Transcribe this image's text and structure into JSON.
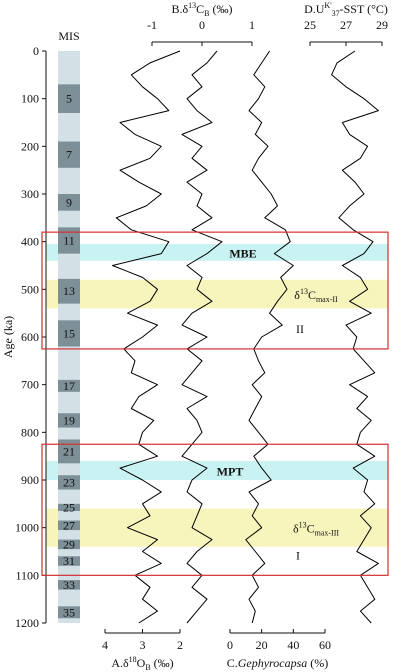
{
  "chart_data": {
    "type": "stacked-proxy",
    "y_title": "Age (ka)",
    "mis_title": "MIS",
    "ylim": [
      0,
      1200
    ],
    "yticks": [
      0,
      100,
      200,
      300,
      400,
      500,
      600,
      700,
      800,
      900,
      1000,
      1100,
      1200
    ],
    "x": [
      0,
      25,
      50,
      75,
      100,
      125,
      150,
      175,
      200,
      225,
      250,
      275,
      300,
      325,
      350,
      375,
      400,
      425,
      450,
      475,
      500,
      525,
      550,
      575,
      600,
      625,
      650,
      675,
      700,
      725,
      750,
      775,
      800,
      825,
      850,
      875,
      900,
      925,
      950,
      975,
      1000,
      1025,
      1050,
      1075,
      1100,
      1125,
      1150,
      1175,
      1200
    ],
    "series": [
      {
        "label": [
          {
            "text": "A.δ",
            "style": "normal"
          },
          {
            "text": "18",
            "style": "sup"
          },
          {
            "text": "O",
            "style": "normal"
          },
          {
            "text": "B",
            "style": "sub"
          },
          {
            "text": " (‰)",
            "style": "normal"
          }
        ],
        "color": "#000000",
        "axis_side": "bottom",
        "xlim": [
          4,
          2
        ],
        "xticks": [
          4,
          3,
          2
        ],
        "values": [
          2.0,
          2.8,
          3.3,
          3.0,
          2.6,
          2.3,
          3.6,
          3.2,
          2.5,
          2.8,
          3.6,
          3.1,
          2.5,
          2.9,
          3.7,
          3.3,
          2.3,
          2.5,
          3.8,
          3.0,
          2.6,
          2.8,
          3.4,
          2.6,
          3.0,
          3.5,
          3.2,
          3.3,
          2.6,
          3.1,
          3.3,
          2.7,
          3.0,
          3.1,
          2.6,
          3.6,
          3.0,
          2.5,
          3.0,
          2.8,
          3.4,
          2.6,
          3.0,
          2.5,
          3.2,
          2.8,
          3.0,
          2.6,
          3.1
        ]
      },
      {
        "label": [
          {
            "text": "B.δ",
            "style": "normal"
          },
          {
            "text": "13",
            "style": "sup"
          },
          {
            "text": "C",
            "style": "normal"
          },
          {
            "text": "B",
            "style": "sub"
          },
          {
            "text": " (‰)",
            "style": "normal"
          }
        ],
        "color": "#000000",
        "axis_side": "top",
        "xlim": [
          -1,
          1
        ],
        "xticks": [
          -1,
          0,
          1
        ],
        "values": [
          0.3,
          0.1,
          -0.2,
          0.0,
          -0.3,
          -0.1,
          0.2,
          -0.4,
          0.0,
          -0.2,
          0.1,
          -0.3,
          0.0,
          -0.1,
          0.2,
          -0.2,
          0.4,
          0.1,
          -0.3,
          0.0,
          -0.1,
          0.2,
          -0.2,
          -0.4,
          0.1,
          -0.3,
          0.0,
          -0.2,
          -0.4,
          0.1,
          -0.3,
          -0.1,
          0.0,
          -0.2,
          -0.4,
          0.1,
          -0.2,
          -0.3,
          0.0,
          -0.1,
          -0.2,
          0.2,
          -0.1,
          -0.3,
          0.0,
          -0.2,
          0.1,
          -0.1,
          -0.3
        ]
      },
      {
        "label": [
          {
            "text": "C.",
            "style": "normal"
          },
          {
            "text": "Gephyrocapsa",
            "style": "italic"
          },
          {
            "text": " (%)",
            "style": "normal"
          }
        ],
        "color": "#000000",
        "axis_side": "bottom",
        "xlim": [
          0,
          60
        ],
        "xticks": [
          0,
          20,
          40,
          60
        ],
        "values": [
          25,
          20,
          15,
          22,
          18,
          12,
          20,
          16,
          24,
          18,
          14,
          20,
          26,
          30,
          22,
          35,
          38,
          28,
          40,
          32,
          36,
          30,
          25,
          33,
          20,
          15,
          18,
          22,
          14,
          20,
          16,
          12,
          18,
          24,
          15,
          20,
          26,
          12,
          18,
          14,
          20,
          10,
          16,
          22,
          14,
          18,
          12,
          16,
          14
        ]
      },
      {
        "label": [
          {
            "text": "D.U",
            "style": "normal"
          },
          {
            "text": "K'",
            "style": "sup"
          },
          {
            "text": "37",
            "style": "sub"
          },
          {
            "text": "-SST (°C)",
            "style": "normal"
          }
        ],
        "color": "#000000",
        "axis_side": "top",
        "xlim": [
          25,
          29
        ],
        "xticks": [
          25,
          27,
          29
        ],
        "values": [
          27.5,
          26.5,
          26.2,
          27.0,
          28.0,
          28.8,
          26.8,
          27.2,
          28.2,
          27.8,
          26.8,
          27.5,
          28.0,
          27.2,
          26.6,
          27.4,
          28.5,
          28.0,
          26.8,
          27.8,
          28.2,
          27.2,
          28.4,
          27.0,
          27.6,
          27.4,
          28.0,
          28.6,
          27.2,
          28.2,
          27.6,
          28.4,
          27.8,
          27.6,
          28.6,
          27.4,
          28.2,
          28.0,
          28.6,
          27.8,
          28.4,
          28.0,
          27.6,
          28.8,
          27.8,
          28.2,
          28.6,
          27.8,
          28.4
        ]
      }
    ],
    "mis": [
      {
        "label": "5",
        "from": 70,
        "to": 130
      },
      {
        "label": "7",
        "from": 190,
        "to": 245
      },
      {
        "label": "9",
        "from": 300,
        "to": 335
      },
      {
        "label": "11",
        "from": 370,
        "to": 425
      },
      {
        "label": "13",
        "from": 478,
        "to": 530
      },
      {
        "label": "15",
        "from": 565,
        "to": 620
      },
      {
        "label": "17",
        "from": 690,
        "to": 715
      },
      {
        "label": "19",
        "from": 760,
        "to": 790
      },
      {
        "label": "21",
        "from": 815,
        "to": 865
      },
      {
        "label": "23",
        "from": 890,
        "to": 920
      },
      {
        "label": "25",
        "from": 950,
        "to": 965
      },
      {
        "label": "27",
        "from": 985,
        "to": 1005
      },
      {
        "label": "29",
        "from": 1025,
        "to": 1045
      },
      {
        "label": "31",
        "from": 1060,
        "to": 1080
      },
      {
        "label": "33",
        "from": 1110,
        "to": 1130
      },
      {
        "label": "35",
        "from": 1165,
        "to": 1190
      }
    ],
    "mis_color": "#7d8f97",
    "mis_background": "#d3e0e5",
    "bands": [
      {
        "from": 405,
        "to": 440,
        "color": "#bff0f0",
        "text_color": "#38c8d6",
        "label": [
          {
            "text": "MBE",
            "style": "bold"
          }
        ]
      },
      {
        "from": 480,
        "to": 540,
        "color": "#f7f3b0",
        "text_color": "#8b1a1a",
        "label": [
          {
            "text": "δ",
            "style": "normal"
          },
          {
            "text": "13",
            "style": "sup"
          },
          {
            "text": "C",
            "style": "normal"
          },
          {
            "text": "max-II",
            "style": "sub"
          }
        ]
      },
      {
        "from": 860,
        "to": 900,
        "color": "#bff0f0",
        "text_color": "#38c8d6",
        "label": [
          {
            "text": "MPT",
            "style": "bold"
          }
        ]
      },
      {
        "from": 960,
        "to": 1040,
        "color": "#f7f3b0",
        "text_color": "#8b1a1a",
        "label": [
          {
            "text": "δ",
            "style": "normal"
          },
          {
            "text": "13",
            "style": "sup"
          },
          {
            "text": "C",
            "style": "normal"
          },
          {
            "text": "max-III",
            "style": "sub"
          }
        ]
      }
    ],
    "boxes": [
      {
        "from": 380,
        "to": 625,
        "color": "#d32f2f",
        "label": [
          {
            "text": "II",
            "style": "normal"
          }
        ]
      },
      {
        "from": 825,
        "to": 1100,
        "color": "#d32f2f",
        "label": [
          {
            "text": "I",
            "style": "normal"
          }
        ]
      }
    ]
  }
}
